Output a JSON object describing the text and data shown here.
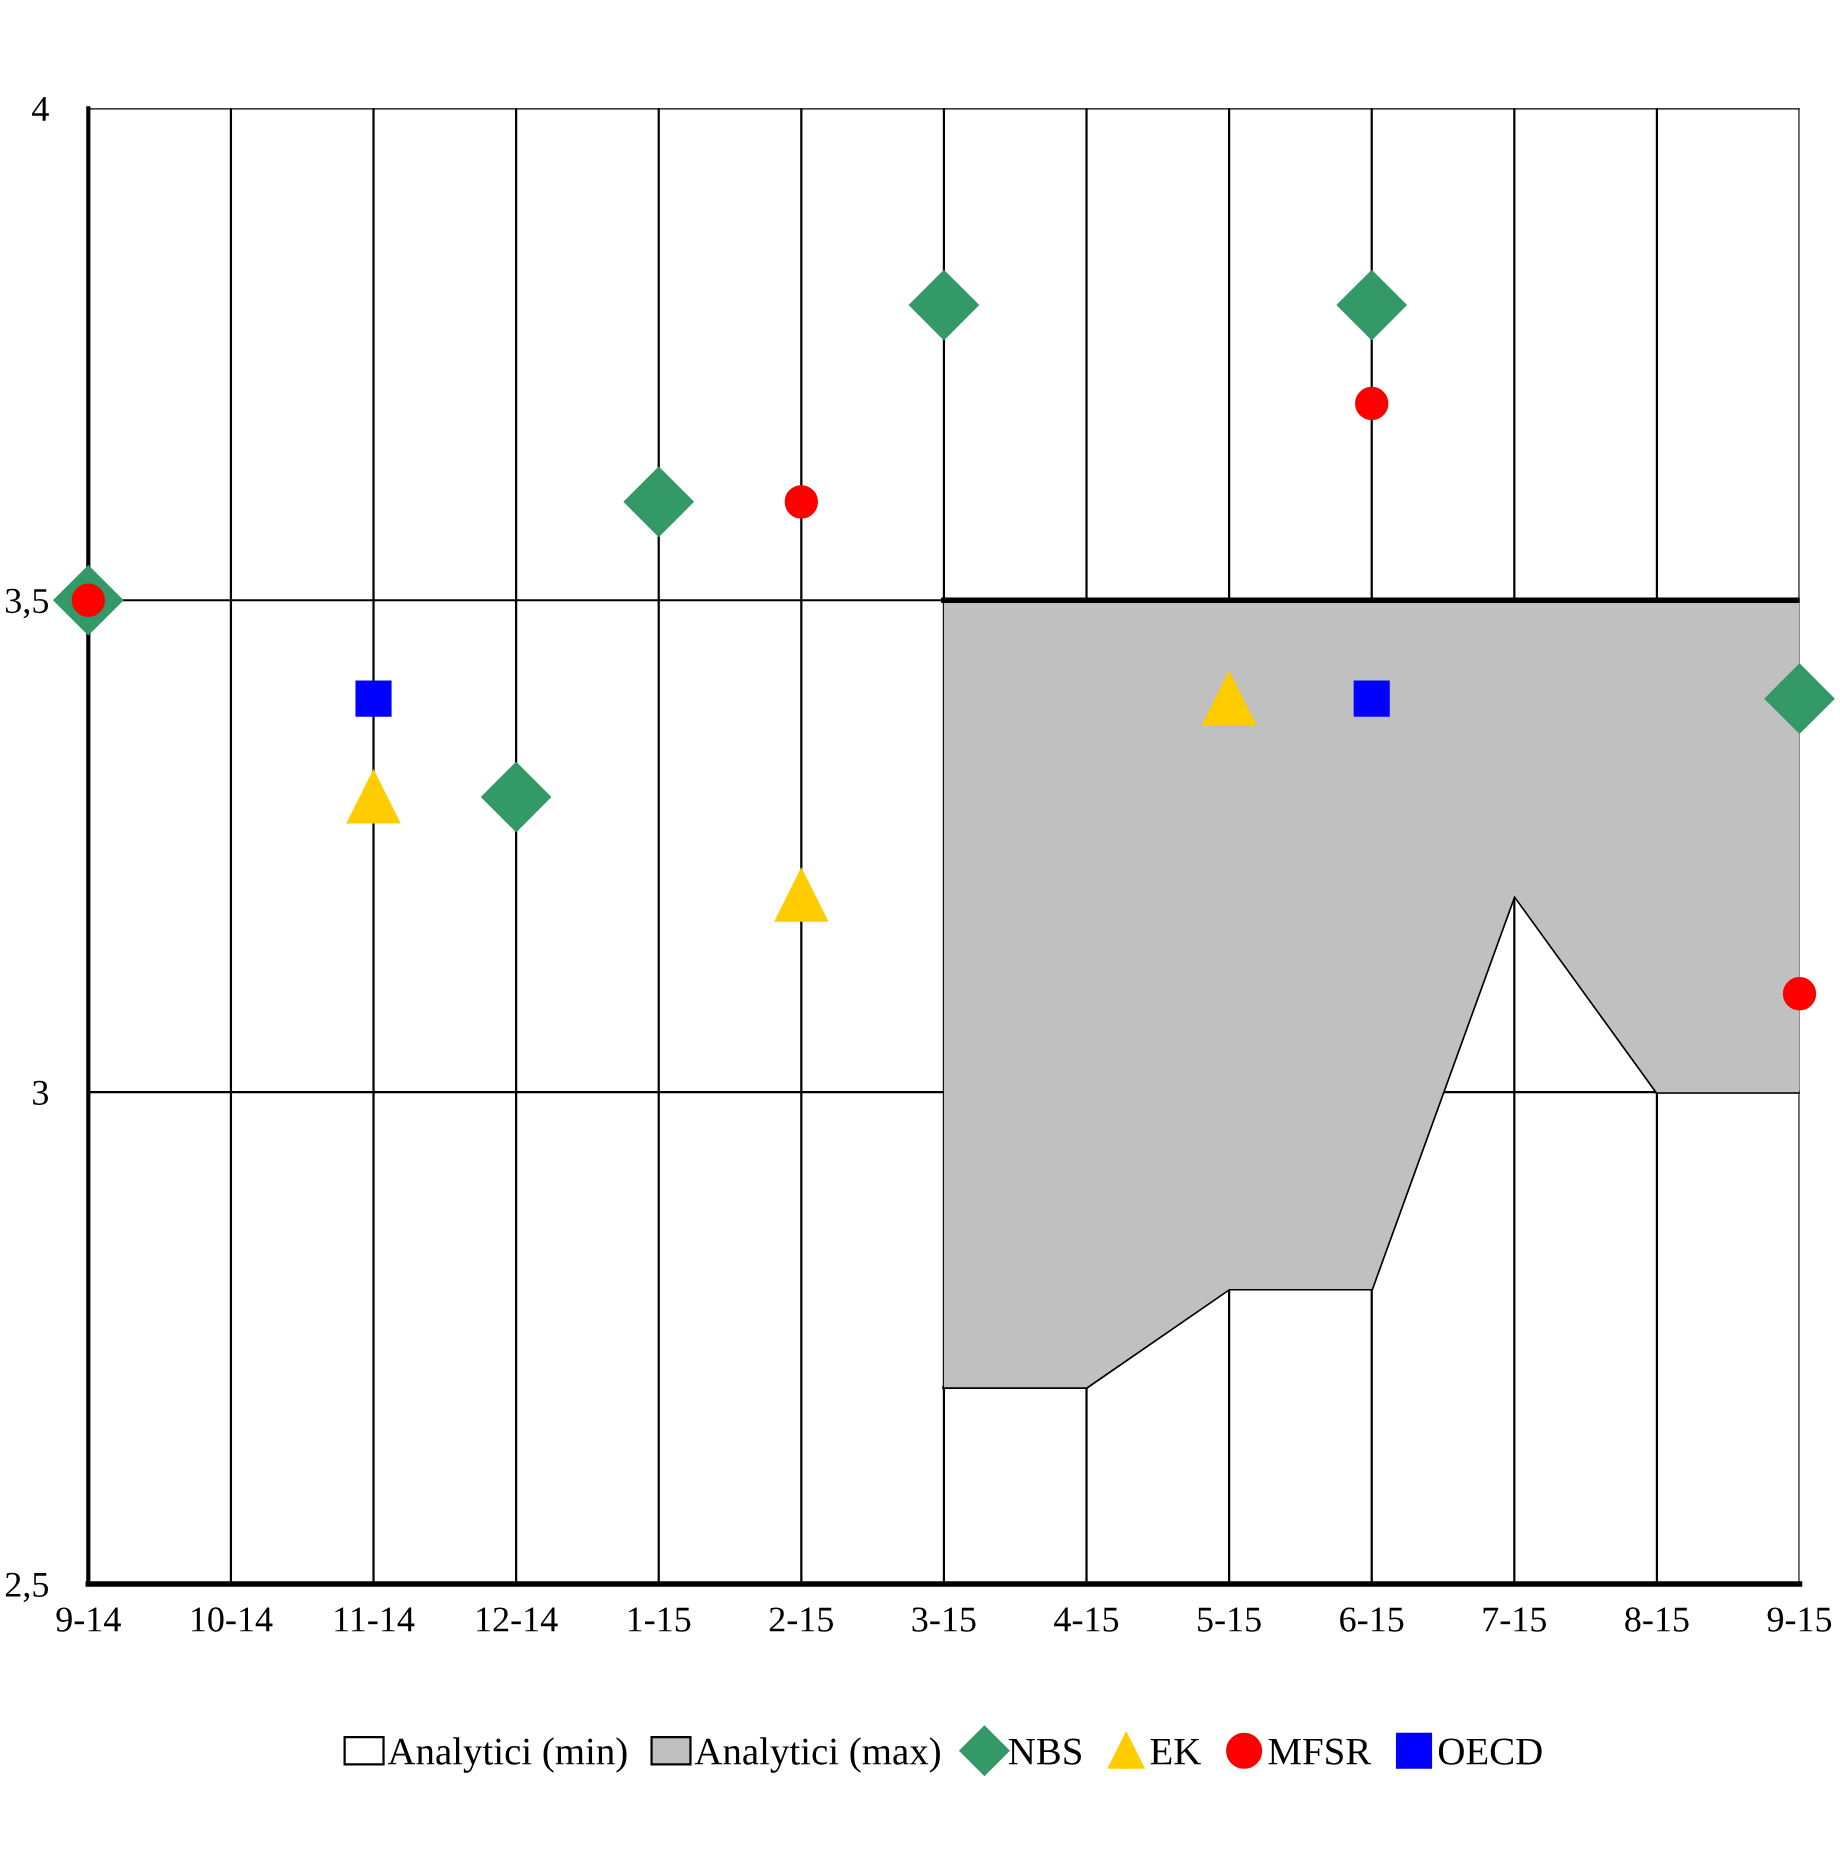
{
  "chart_data": {
    "type": "area",
    "categories": [
      "9-14",
      "10-14",
      "11-14",
      "12-14",
      "1-15",
      "2-15",
      "3-15",
      "4-15",
      "5-15",
      "6-15",
      "7-15",
      "8-15",
      "9-15"
    ],
    "ylim": [
      2.5,
      4
    ],
    "yticks": [
      {
        "value": 2.5,
        "label": "2,5"
      },
      3,
      {
        "value": 3.5,
        "label": "3,5"
      },
      4
    ],
    "grid": true,
    "legend": "bottom",
    "series": [
      {
        "name": "Analytici (min)",
        "color": "#ffffff",
        "values": [
          null,
          null,
          null,
          null,
          null,
          null,
          2.7,
          2.7,
          2.8,
          2.8,
          3.2,
          3.0,
          3.0
        ]
      },
      {
        "name": "Analytici (max)",
        "color": "#c0c0c0",
        "values": [
          null,
          null,
          null,
          null,
          null,
          null,
          3.5,
          3.5,
          3.5,
          3.5,
          3.5,
          3.5,
          3.5
        ]
      },
      {
        "name": "NBS",
        "type": "scatter",
        "marker": "diamond",
        "color": "#339966",
        "values": [
          3.5,
          null,
          null,
          3.3,
          3.6,
          null,
          3.8,
          null,
          null,
          3.8,
          null,
          null,
          3.4
        ]
      },
      {
        "name": "EK",
        "type": "scatter",
        "marker": "triangle",
        "color": "#ffcc00",
        "values": [
          null,
          null,
          3.3,
          null,
          null,
          3.2,
          null,
          null,
          3.4,
          null,
          null,
          null,
          null
        ]
      },
      {
        "name": "MFSR",
        "type": "scatter",
        "marker": "circle",
        "color": "#ff0000",
        "values": [
          3.5,
          null,
          null,
          null,
          null,
          3.6,
          null,
          null,
          null,
          3.7,
          null,
          null,
          3.1
        ]
      },
      {
        "name": "OECD",
        "type": "scatter",
        "marker": "square",
        "color": "#0000ff",
        "values": [
          null,
          null,
          3.4,
          null,
          null,
          null,
          null,
          null,
          null,
          3.4,
          null,
          null,
          null
        ]
      }
    ]
  }
}
